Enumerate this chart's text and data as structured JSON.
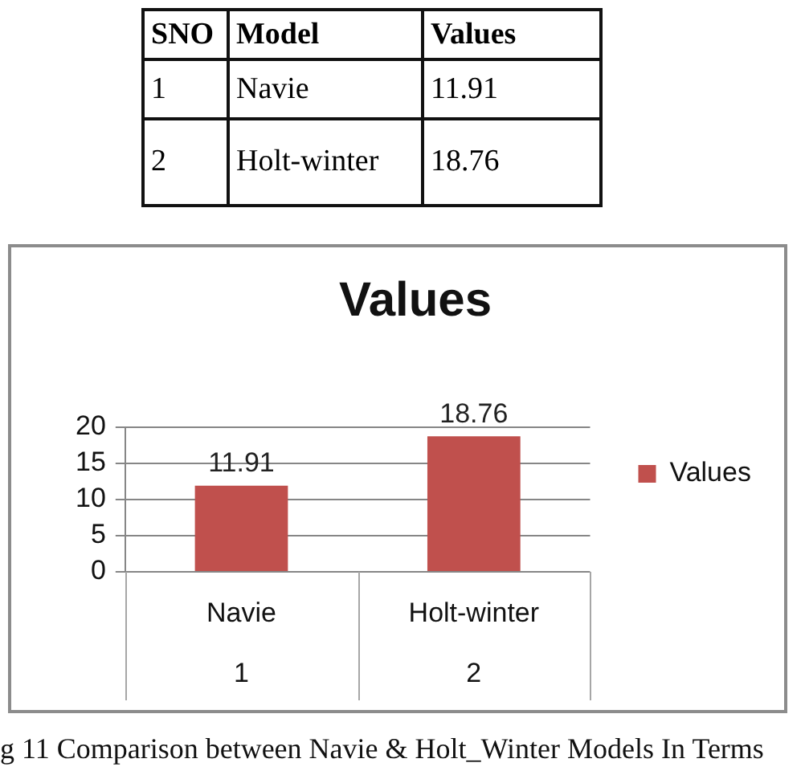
{
  "chart_data": [
    {
      "type": "other",
      "annotations": [
        "SNO",
        "Model",
        "Values",
        "1",
        "Navie",
        "11.91",
        "2",
        "Holt-winter",
        "18.76"
      ]
    },
    {
      "type": "bar",
      "title": "Values",
      "categories": [
        "Navie",
        "Holt-winter"
      ],
      "series": [
        {
          "name": "Values",
          "color": "#c0504d",
          "values": [
            11.91,
            18.76
          ]
        }
      ],
      "ylim": [
        0,
        20
      ],
      "yticks": [
        0,
        5,
        10,
        15,
        20
      ],
      "grid": "y",
      "legend": "right",
      "data_labels": true,
      "annotations": [
        "1",
        "2",
        "g 11 Comparison between Navie & Holt_Winter Models In Terms"
      ]
    }
  ]
}
